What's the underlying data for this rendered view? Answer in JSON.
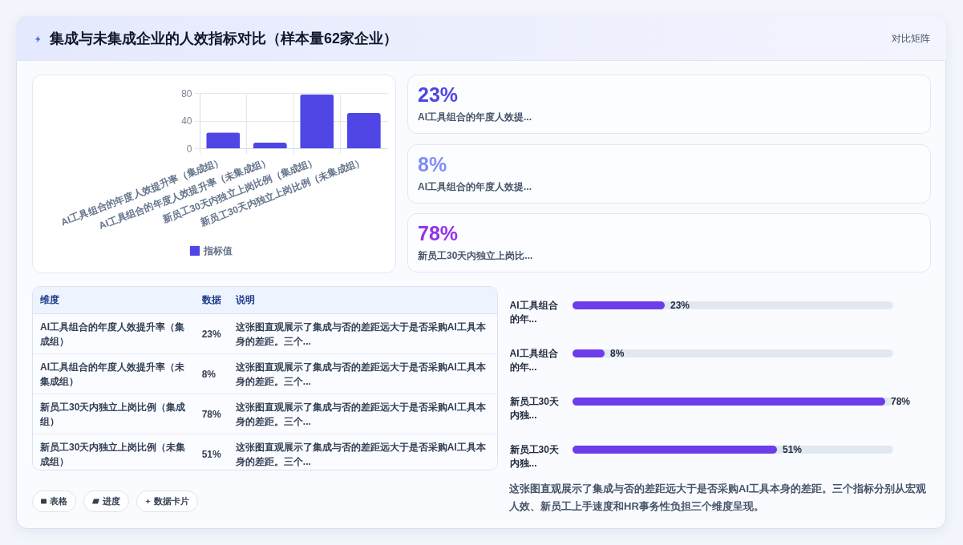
{
  "chart_data": [
    {
      "type": "other",
      "title": "集成与未集成企业的人效指标对比（样本量62家企业）",
      "annotations": [
        "对比矩阵"
      ]
    },
    {
      "type": "bar",
      "categories": [
        "AI工具组合的年度人效提升率（集成组）",
        "AI工具组合的年度人效提升率（未集成组）",
        "新员工30天内独立上岗比例（集成组）",
        "新员工30天内独立上岗比例（未集成组）"
      ],
      "series": [
        {
          "name": "指标值",
          "color": "#4f46e5",
          "values": [
            23,
            8,
            78,
            51
          ]
        }
      ],
      "ylim": [
        0,
        80
      ],
      "yticks": [
        0,
        40,
        80
      ],
      "grid": true,
      "legend": "bottom"
    },
    {
      "type": "other",
      "categories": [
        "AI工具组合的年度人效提...",
        "AI工具组合的年度人效提...",
        "新员工30天内独立上岗比..."
      ],
      "value_labels": [
        "23%",
        "8%",
        "78%"
      ]
    },
    {
      "type": "other",
      "categories": [
        "AI工具组合的年度人效提升率（集成组）",
        "AI工具组合的年度人效提升率（未集成组）",
        "新员工30天内独立上岗比例（集成组）",
        "新员工30天内独立上岗比例（未集成组）"
      ],
      "value_labels": [
        "23%",
        "8%",
        "78%",
        "51%"
      ],
      "annotations": [
        "维度",
        "数据",
        "说明",
        "这张图直观展示了集成与否的差距远大于是否采购AI工具本身的差距。三个...",
        "这张图直观展示了集成与否的差距远大于是否采购AI工具本身的差距。三个...",
        "这张图直观展示了集成与否的差距远大于是否采购AI工具本身的差距。三个...",
        "这张图直观展示了集成与否的差距远大于是否采购AI工具本身的差距。三个..."
      ]
    },
    {
      "type": "bar",
      "orientation": "horizontal",
      "categories": [
        "AI工具组合的年...",
        "AI工具组合的年...",
        "新员工30天内独...",
        "新员工30天内独..."
      ],
      "values": [
        23,
        8,
        78,
        51
      ],
      "value_labels": [
        "23%",
        "8%",
        "78%",
        "51%"
      ],
      "color": "#6d3de9",
      "tick_labels": "y",
      "annotations": [
        "这张图直观展示了集成与否的差距远大于是否采购AI工具本身的差距。三个指标分别从宏观人效、新员工上手速度和HR事务性负担三个维度呈现。"
      ]
    },
    {
      "type": "other",
      "annotations": [
        "表格",
        "进度",
        "数据卡片"
      ]
    }
  ]
}
